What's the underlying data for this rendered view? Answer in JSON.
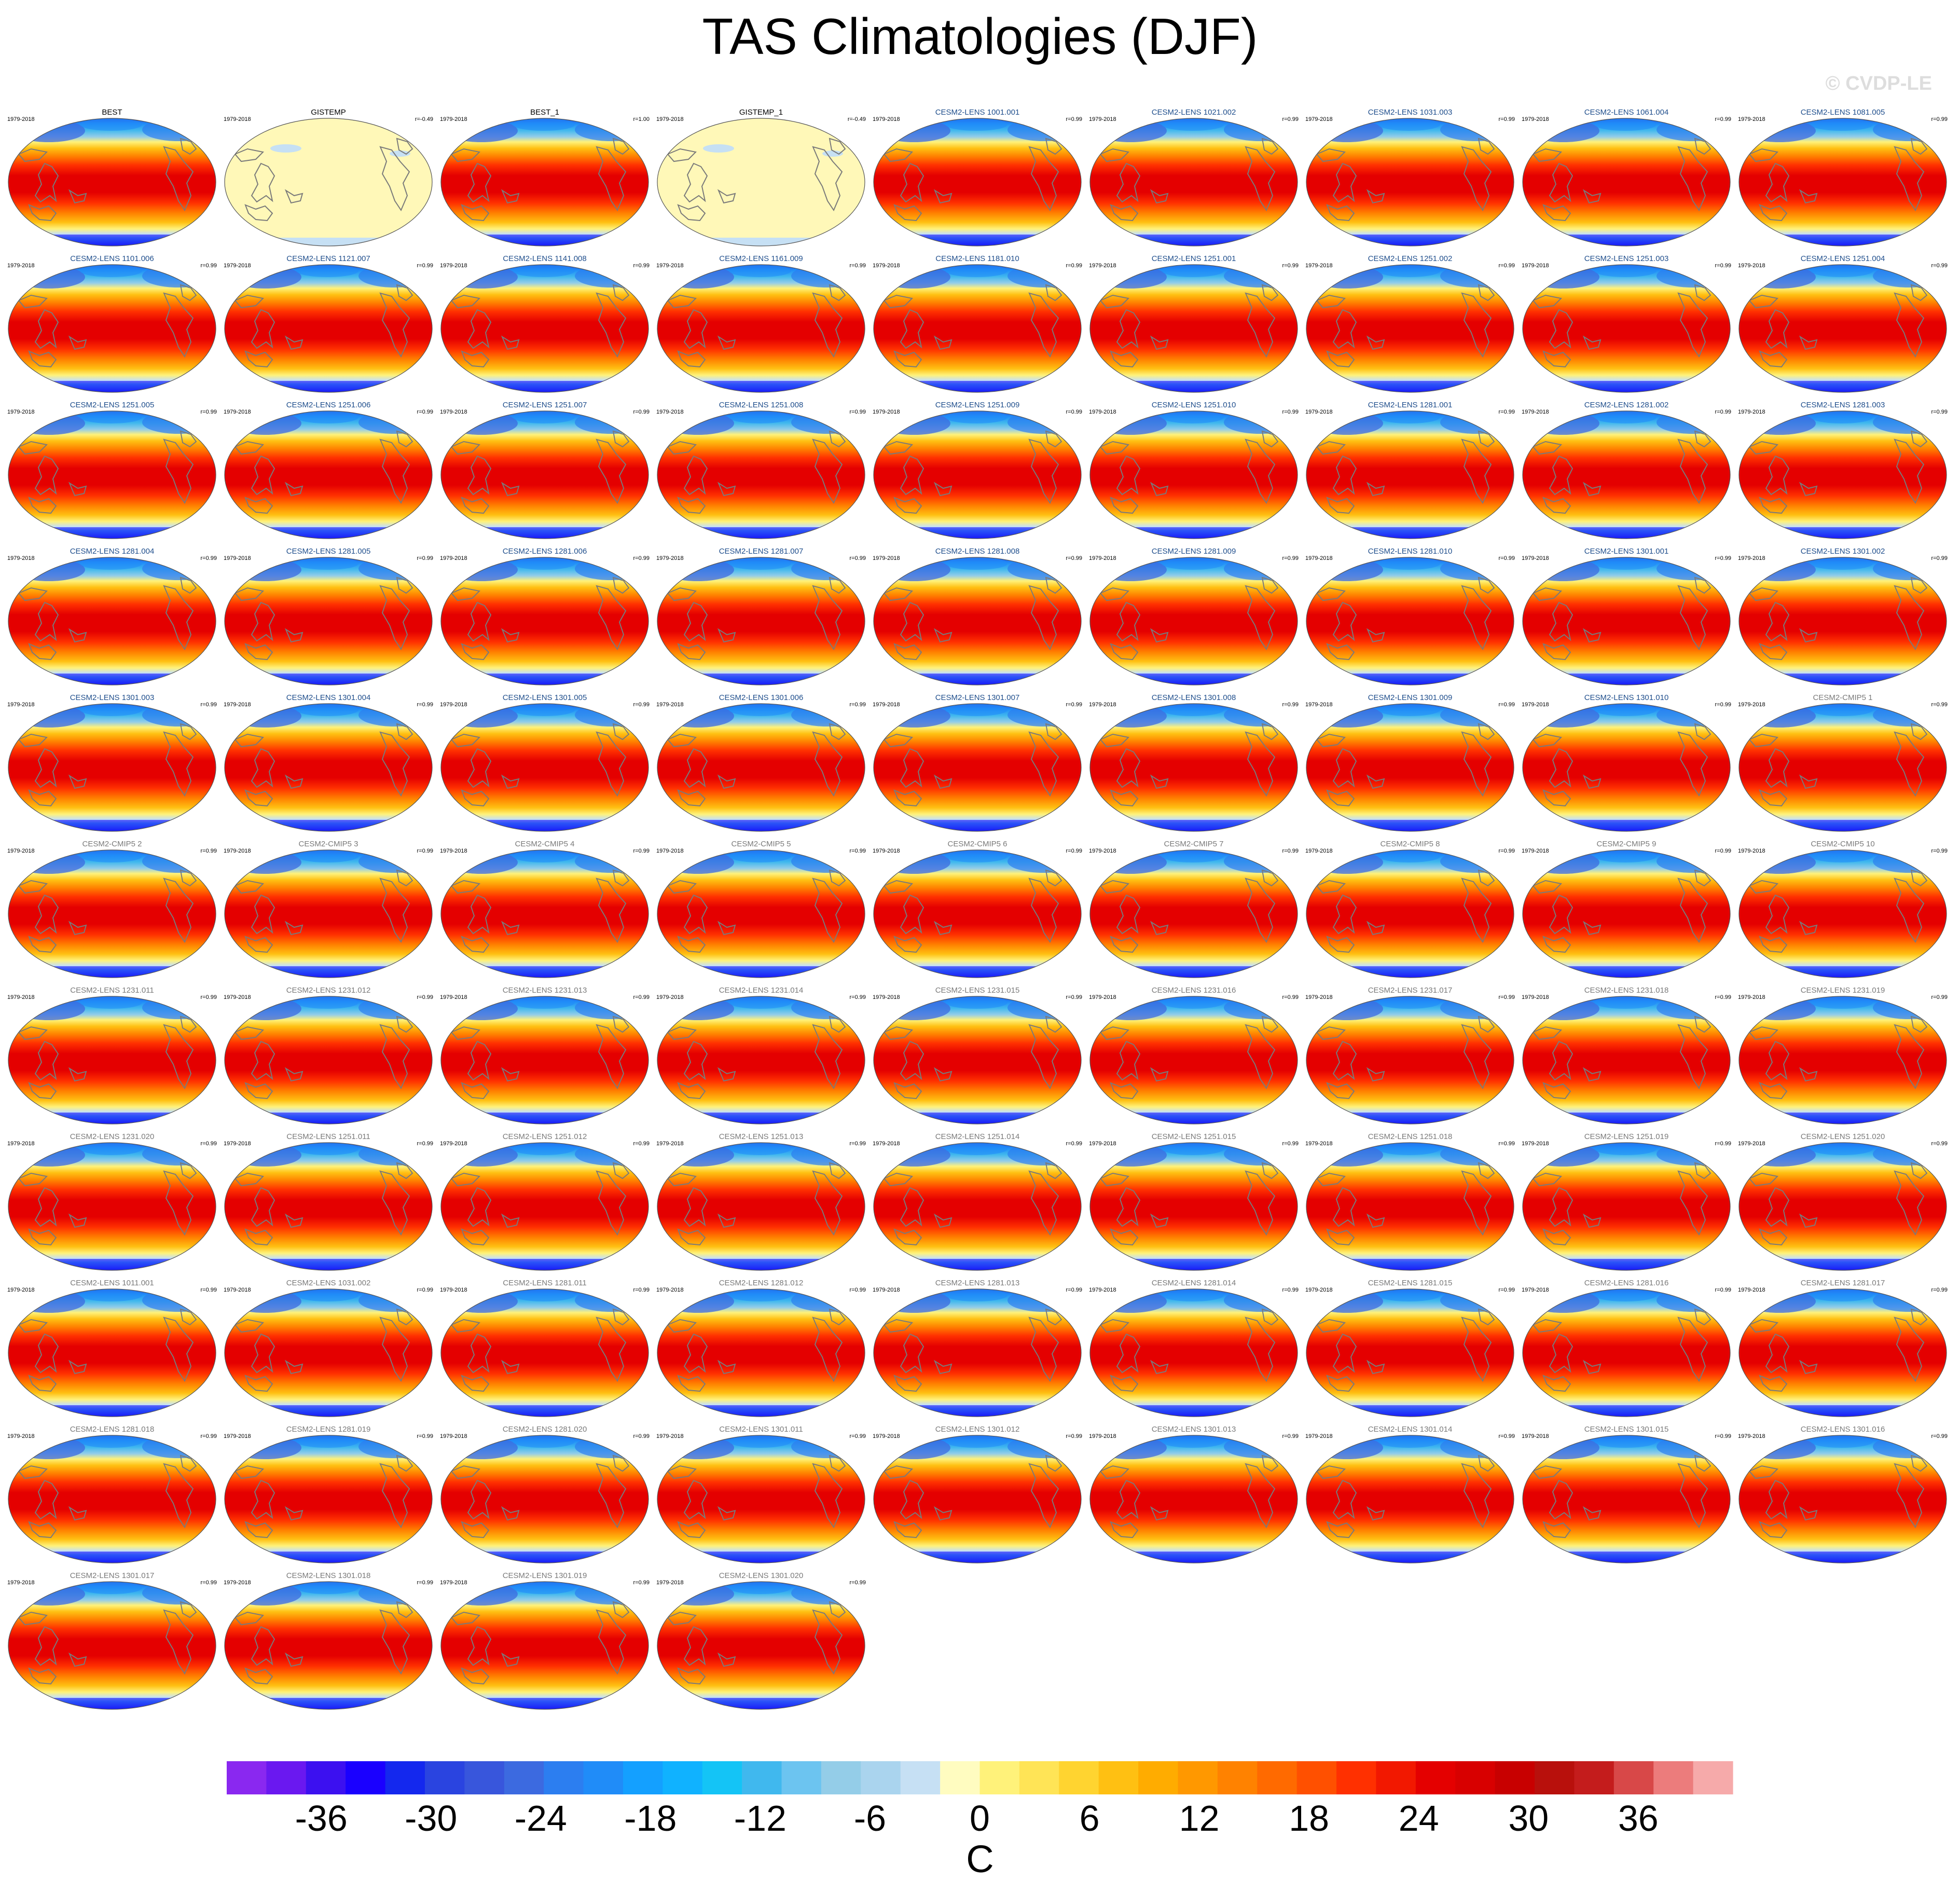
{
  "header": {
    "title": "TAS Climatologies (DJF)",
    "watermark": "© CVDP-LE"
  },
  "colors": {
    "obs_title": "#000000",
    "lens_title": "#1f4e8c",
    "model_title": "#7a7a7a",
    "land_outline": "#7a7a7a",
    "obs_blank_fill": "#fff8b8"
  },
  "chart_data": {
    "type": "heatmap",
    "title": "TAS Climatologies (DJF)",
    "units": "C",
    "projection": "global ellipse, Pacific-centered",
    "colorbar": {
      "ticks": [
        -36,
        -30,
        -24,
        -18,
        -12,
        -6,
        0,
        6,
        12,
        18,
        24,
        30,
        36
      ],
      "range": [
        -42,
        42
      ],
      "step": 3,
      "colors": [
        "#8a28f0",
        "#6a18f0",
        "#3c10f0",
        "#1a00ff",
        "#1428ee",
        "#2a44e0",
        "#3856dc",
        "#3c6ae0",
        "#2c7ef0",
        "#208cf8",
        "#14a0ff",
        "#10b2ff",
        "#14c4f6",
        "#40b8ee",
        "#6cc4f0",
        "#94cde8",
        "#aad4ee",
        "#c6e0f4",
        "#fffcc0",
        "#fff27a",
        "#ffe456",
        "#ffd430",
        "#ffc012",
        "#ffac00",
        "#ff9800",
        "#ff8200",
        "#ff6a00",
        "#ff5000",
        "#ff3000",
        "#f21800",
        "#e40000",
        "#d80000",
        "#c80000",
        "#b8100c",
        "#c41c1c",
        "#d84848",
        "#ec7c7c",
        "#f6aaaa"
      ]
    },
    "panels": [
      {
        "name": "BEST",
        "period": "1979-2018",
        "r": "",
        "kind": "obs",
        "data": true
      },
      {
        "name": "GISTEMP",
        "period": "1979-2018",
        "r": "r=-0.49",
        "kind": "obs",
        "data": false
      },
      {
        "name": "BEST_1",
        "period": "1979-2018",
        "r": "r=1.00",
        "kind": "obs",
        "data": true
      },
      {
        "name": "GISTEMP_1",
        "period": "1979-2018",
        "r": "r=-0.49",
        "kind": "obs",
        "data": false
      },
      {
        "name": "CESM2-LENS 1001.001",
        "period": "1979-2018",
        "r": "r=0.99",
        "kind": "lens",
        "data": true
      },
      {
        "name": "CESM2-LENS 1021.002",
        "period": "1979-2018",
        "r": "r=0.99",
        "kind": "lens",
        "data": true
      },
      {
        "name": "CESM2-LENS 1031.003",
        "period": "1979-2018",
        "r": "r=0.99",
        "kind": "lens",
        "data": true
      },
      {
        "name": "CESM2-LENS 1061.004",
        "period": "1979-2018",
        "r": "r=0.99",
        "kind": "lens",
        "data": true
      },
      {
        "name": "CESM2-LENS 1081.005",
        "period": "1979-2018",
        "r": "r=0.99",
        "kind": "lens",
        "data": true
      },
      {
        "name": "CESM2-LENS 1101.006",
        "period": "1979-2018",
        "r": "r=0.99",
        "kind": "lens",
        "data": true
      },
      {
        "name": "CESM2-LENS 1121.007",
        "period": "1979-2018",
        "r": "r=0.99",
        "kind": "lens",
        "data": true
      },
      {
        "name": "CESM2-LENS 1141.008",
        "period": "1979-2018",
        "r": "r=0.99",
        "kind": "lens",
        "data": true
      },
      {
        "name": "CESM2-LENS 1161.009",
        "period": "1979-2018",
        "r": "r=0.99",
        "kind": "lens",
        "data": true
      },
      {
        "name": "CESM2-LENS 1181.010",
        "period": "1979-2018",
        "r": "r=0.99",
        "kind": "lens",
        "data": true
      },
      {
        "name": "CESM2-LENS 1251.001",
        "period": "1979-2018",
        "r": "r=0.99",
        "kind": "lens",
        "data": true
      },
      {
        "name": "CESM2-LENS 1251.002",
        "period": "1979-2018",
        "r": "r=0.99",
        "kind": "lens",
        "data": true
      },
      {
        "name": "CESM2-LENS 1251.003",
        "period": "1979-2018",
        "r": "r=0.99",
        "kind": "lens",
        "data": true
      },
      {
        "name": "CESM2-LENS 1251.004",
        "period": "1979-2018",
        "r": "r=0.99",
        "kind": "lens",
        "data": true
      },
      {
        "name": "CESM2-LENS 1251.005",
        "period": "1979-2018",
        "r": "r=0.99",
        "kind": "lens",
        "data": true
      },
      {
        "name": "CESM2-LENS 1251.006",
        "period": "1979-2018",
        "r": "r=0.99",
        "kind": "lens",
        "data": true
      },
      {
        "name": "CESM2-LENS 1251.007",
        "period": "1979-2018",
        "r": "r=0.99",
        "kind": "lens",
        "data": true
      },
      {
        "name": "CESM2-LENS 1251.008",
        "period": "1979-2018",
        "r": "r=0.99",
        "kind": "lens",
        "data": true
      },
      {
        "name": "CESM2-LENS 1251.009",
        "period": "1979-2018",
        "r": "r=0.99",
        "kind": "lens",
        "data": true
      },
      {
        "name": "CESM2-LENS 1251.010",
        "period": "1979-2018",
        "r": "r=0.99",
        "kind": "lens",
        "data": true
      },
      {
        "name": "CESM2-LENS 1281.001",
        "period": "1979-2018",
        "r": "r=0.99",
        "kind": "lens",
        "data": true
      },
      {
        "name": "CESM2-LENS 1281.002",
        "period": "1979-2018",
        "r": "r=0.99",
        "kind": "lens",
        "data": true
      },
      {
        "name": "CESM2-LENS 1281.003",
        "period": "1979-2018",
        "r": "r=0.99",
        "kind": "lens",
        "data": true
      },
      {
        "name": "CESM2-LENS 1281.004",
        "period": "1979-2018",
        "r": "r=0.99",
        "kind": "lens",
        "data": true
      },
      {
        "name": "CESM2-LENS 1281.005",
        "period": "1979-2018",
        "r": "r=0.99",
        "kind": "lens",
        "data": true
      },
      {
        "name": "CESM2-LENS 1281.006",
        "period": "1979-2018",
        "r": "r=0.99",
        "kind": "lens",
        "data": true
      },
      {
        "name": "CESM2-LENS 1281.007",
        "period": "1979-2018",
        "r": "r=0.99",
        "kind": "lens",
        "data": true
      },
      {
        "name": "CESM2-LENS 1281.008",
        "period": "1979-2018",
        "r": "r=0.99",
        "kind": "lens",
        "data": true
      },
      {
        "name": "CESM2-LENS 1281.009",
        "period": "1979-2018",
        "r": "r=0.99",
        "kind": "lens",
        "data": true
      },
      {
        "name": "CESM2-LENS 1281.010",
        "period": "1979-2018",
        "r": "r=0.99",
        "kind": "lens",
        "data": true
      },
      {
        "name": "CESM2-LENS 1301.001",
        "period": "1979-2018",
        "r": "r=0.99",
        "kind": "lens",
        "data": true
      },
      {
        "name": "CESM2-LENS 1301.002",
        "period": "1979-2018",
        "r": "r=0.99",
        "kind": "lens",
        "data": true
      },
      {
        "name": "CESM2-LENS 1301.003",
        "period": "1979-2018",
        "r": "r=0.99",
        "kind": "lens",
        "data": true
      },
      {
        "name": "CESM2-LENS 1301.004",
        "period": "1979-2018",
        "r": "r=0.99",
        "kind": "lens",
        "data": true
      },
      {
        "name": "CESM2-LENS 1301.005",
        "period": "1979-2018",
        "r": "r=0.99",
        "kind": "lens",
        "data": true
      },
      {
        "name": "CESM2-LENS 1301.006",
        "period": "1979-2018",
        "r": "r=0.99",
        "kind": "lens",
        "data": true
      },
      {
        "name": "CESM2-LENS 1301.007",
        "period": "1979-2018",
        "r": "r=0.99",
        "kind": "lens",
        "data": true
      },
      {
        "name": "CESM2-LENS 1301.008",
        "period": "1979-2018",
        "r": "r=0.99",
        "kind": "lens",
        "data": true
      },
      {
        "name": "CESM2-LENS 1301.009",
        "period": "1979-2018",
        "r": "r=0.99",
        "kind": "lens",
        "data": true
      },
      {
        "name": "CESM2-LENS 1301.010",
        "period": "1979-2018",
        "r": "r=0.99",
        "kind": "lens",
        "data": true
      },
      {
        "name": "CESM2-CMIP5 1",
        "period": "1979-2018",
        "r": "r=0.99",
        "kind": "model",
        "data": true
      },
      {
        "name": "CESM2-CMIP5 2",
        "period": "1979-2018",
        "r": "r=0.99",
        "kind": "model",
        "data": true
      },
      {
        "name": "CESM2-CMIP5 3",
        "period": "1979-2018",
        "r": "r=0.99",
        "kind": "model",
        "data": true
      },
      {
        "name": "CESM2-CMIP5 4",
        "period": "1979-2018",
        "r": "r=0.99",
        "kind": "model",
        "data": true
      },
      {
        "name": "CESM2-CMIP5 5",
        "period": "1979-2018",
        "r": "r=0.99",
        "kind": "model",
        "data": true
      },
      {
        "name": "CESM2-CMIP5 6",
        "period": "1979-2018",
        "r": "r=0.99",
        "kind": "model",
        "data": true
      },
      {
        "name": "CESM2-CMIP5 7",
        "period": "1979-2018",
        "r": "r=0.99",
        "kind": "model",
        "data": true
      },
      {
        "name": "CESM2-CMIP5 8",
        "period": "1979-2018",
        "r": "r=0.99",
        "kind": "model",
        "data": true
      },
      {
        "name": "CESM2-CMIP5 9",
        "period": "1979-2018",
        "r": "r=0.99",
        "kind": "model",
        "data": true
      },
      {
        "name": "CESM2-CMIP5 10",
        "period": "1979-2018",
        "r": "r=0.99",
        "kind": "model",
        "data": true
      },
      {
        "name": "CESM2-LENS 1231.011",
        "period": "1979-2018",
        "r": "r=0.99",
        "kind": "model",
        "data": true
      },
      {
        "name": "CESM2-LENS 1231.012",
        "period": "1979-2018",
        "r": "r=0.99",
        "kind": "model",
        "data": true
      },
      {
        "name": "CESM2-LENS 1231.013",
        "period": "1979-2018",
        "r": "r=0.99",
        "kind": "model",
        "data": true
      },
      {
        "name": "CESM2-LENS 1231.014",
        "period": "1979-2018",
        "r": "r=0.99",
        "kind": "model",
        "data": true
      },
      {
        "name": "CESM2-LENS 1231.015",
        "period": "1979-2018",
        "r": "r=0.99",
        "kind": "model",
        "data": true
      },
      {
        "name": "CESM2-LENS 1231.016",
        "period": "1979-2018",
        "r": "r=0.99",
        "kind": "model",
        "data": true
      },
      {
        "name": "CESM2-LENS 1231.017",
        "period": "1979-2018",
        "r": "r=0.99",
        "kind": "model",
        "data": true
      },
      {
        "name": "CESM2-LENS 1231.018",
        "period": "1979-2018",
        "r": "r=0.99",
        "kind": "model",
        "data": true
      },
      {
        "name": "CESM2-LENS 1231.019",
        "period": "1979-2018",
        "r": "r=0.99",
        "kind": "model",
        "data": true
      },
      {
        "name": "CESM2-LENS 1231.020",
        "period": "1979-2018",
        "r": "r=0.99",
        "kind": "model",
        "data": true
      },
      {
        "name": "CESM2-LENS 1251.011",
        "period": "1979-2018",
        "r": "r=0.99",
        "kind": "model",
        "data": true
      },
      {
        "name": "CESM2-LENS 1251.012",
        "period": "1979-2018",
        "r": "r=0.99",
        "kind": "model",
        "data": true
      },
      {
        "name": "CESM2-LENS 1251.013",
        "period": "1979-2018",
        "r": "r=0.99",
        "kind": "model",
        "data": true
      },
      {
        "name": "CESM2-LENS 1251.014",
        "period": "1979-2018",
        "r": "r=0.99",
        "kind": "model",
        "data": true
      },
      {
        "name": "CESM2-LENS 1251.015",
        "period": "1979-2018",
        "r": "r=0.99",
        "kind": "model",
        "data": true
      },
      {
        "name": "CESM2-LENS 1251.018",
        "period": "1979-2018",
        "r": "r=0.99",
        "kind": "model",
        "data": true
      },
      {
        "name": "CESM2-LENS 1251.019",
        "period": "1979-2018",
        "r": "r=0.99",
        "kind": "model",
        "data": true
      },
      {
        "name": "CESM2-LENS 1251.020",
        "period": "1979-2018",
        "r": "r=0.99",
        "kind": "model",
        "data": true
      },
      {
        "name": "CESM2-LENS 1011.001",
        "period": "1979-2018",
        "r": "r=0.99",
        "kind": "model",
        "data": true
      },
      {
        "name": "CESM2-LENS 1031.002",
        "period": "1979-2018",
        "r": "r=0.99",
        "kind": "model",
        "data": true
      },
      {
        "name": "CESM2-LENS 1281.011",
        "period": "1979-2018",
        "r": "r=0.99",
        "kind": "model",
        "data": true
      },
      {
        "name": "CESM2-LENS 1281.012",
        "period": "1979-2018",
        "r": "r=0.99",
        "kind": "model",
        "data": true
      },
      {
        "name": "CESM2-LENS 1281.013",
        "period": "1979-2018",
        "r": "r=0.99",
        "kind": "model",
        "data": true
      },
      {
        "name": "CESM2-LENS 1281.014",
        "period": "1979-2018",
        "r": "r=0.99",
        "kind": "model",
        "data": true
      },
      {
        "name": "CESM2-LENS 1281.015",
        "period": "1979-2018",
        "r": "r=0.99",
        "kind": "model",
        "data": true
      },
      {
        "name": "CESM2-LENS 1281.016",
        "period": "1979-2018",
        "r": "r=0.99",
        "kind": "model",
        "data": true
      },
      {
        "name": "CESM2-LENS 1281.017",
        "period": "1979-2018",
        "r": "r=0.99",
        "kind": "model",
        "data": true
      },
      {
        "name": "CESM2-LENS 1281.018",
        "period": "1979-2018",
        "r": "r=0.99",
        "kind": "model",
        "data": true
      },
      {
        "name": "CESM2-LENS 1281.019",
        "period": "1979-2018",
        "r": "r=0.99",
        "kind": "model",
        "data": true
      },
      {
        "name": "CESM2-LENS 1281.020",
        "period": "1979-2018",
        "r": "r=0.99",
        "kind": "model",
        "data": true
      },
      {
        "name": "CESM2-LENS 1301.011",
        "period": "1979-2018",
        "r": "r=0.99",
        "kind": "model",
        "data": true
      },
      {
        "name": "CESM2-LENS 1301.012",
        "period": "1979-2018",
        "r": "r=0.99",
        "kind": "model",
        "data": true
      },
      {
        "name": "CESM2-LENS 1301.013",
        "period": "1979-2018",
        "r": "r=0.99",
        "kind": "model",
        "data": true
      },
      {
        "name": "CESM2-LENS 1301.014",
        "period": "1979-2018",
        "r": "r=0.99",
        "kind": "model",
        "data": true
      },
      {
        "name": "CESM2-LENS 1301.015",
        "period": "1979-2018",
        "r": "r=0.99",
        "kind": "model",
        "data": true
      },
      {
        "name": "CESM2-LENS 1301.016",
        "period": "1979-2018",
        "r": "r=0.99",
        "kind": "model",
        "data": true
      },
      {
        "name": "CESM2-LENS 1301.017",
        "period": "1979-2018",
        "r": "r=0.99",
        "kind": "model",
        "data": true
      },
      {
        "name": "CESM2-LENS 1301.018",
        "period": "1979-2018",
        "r": "r=0.99",
        "kind": "model",
        "data": true
      },
      {
        "name": "CESM2-LENS 1301.019",
        "period": "1979-2018",
        "r": "r=0.99",
        "kind": "model",
        "data": true
      },
      {
        "name": "CESM2-LENS 1301.020",
        "period": "1979-2018",
        "r": "r=0.99",
        "kind": "model",
        "data": true
      }
    ]
  }
}
